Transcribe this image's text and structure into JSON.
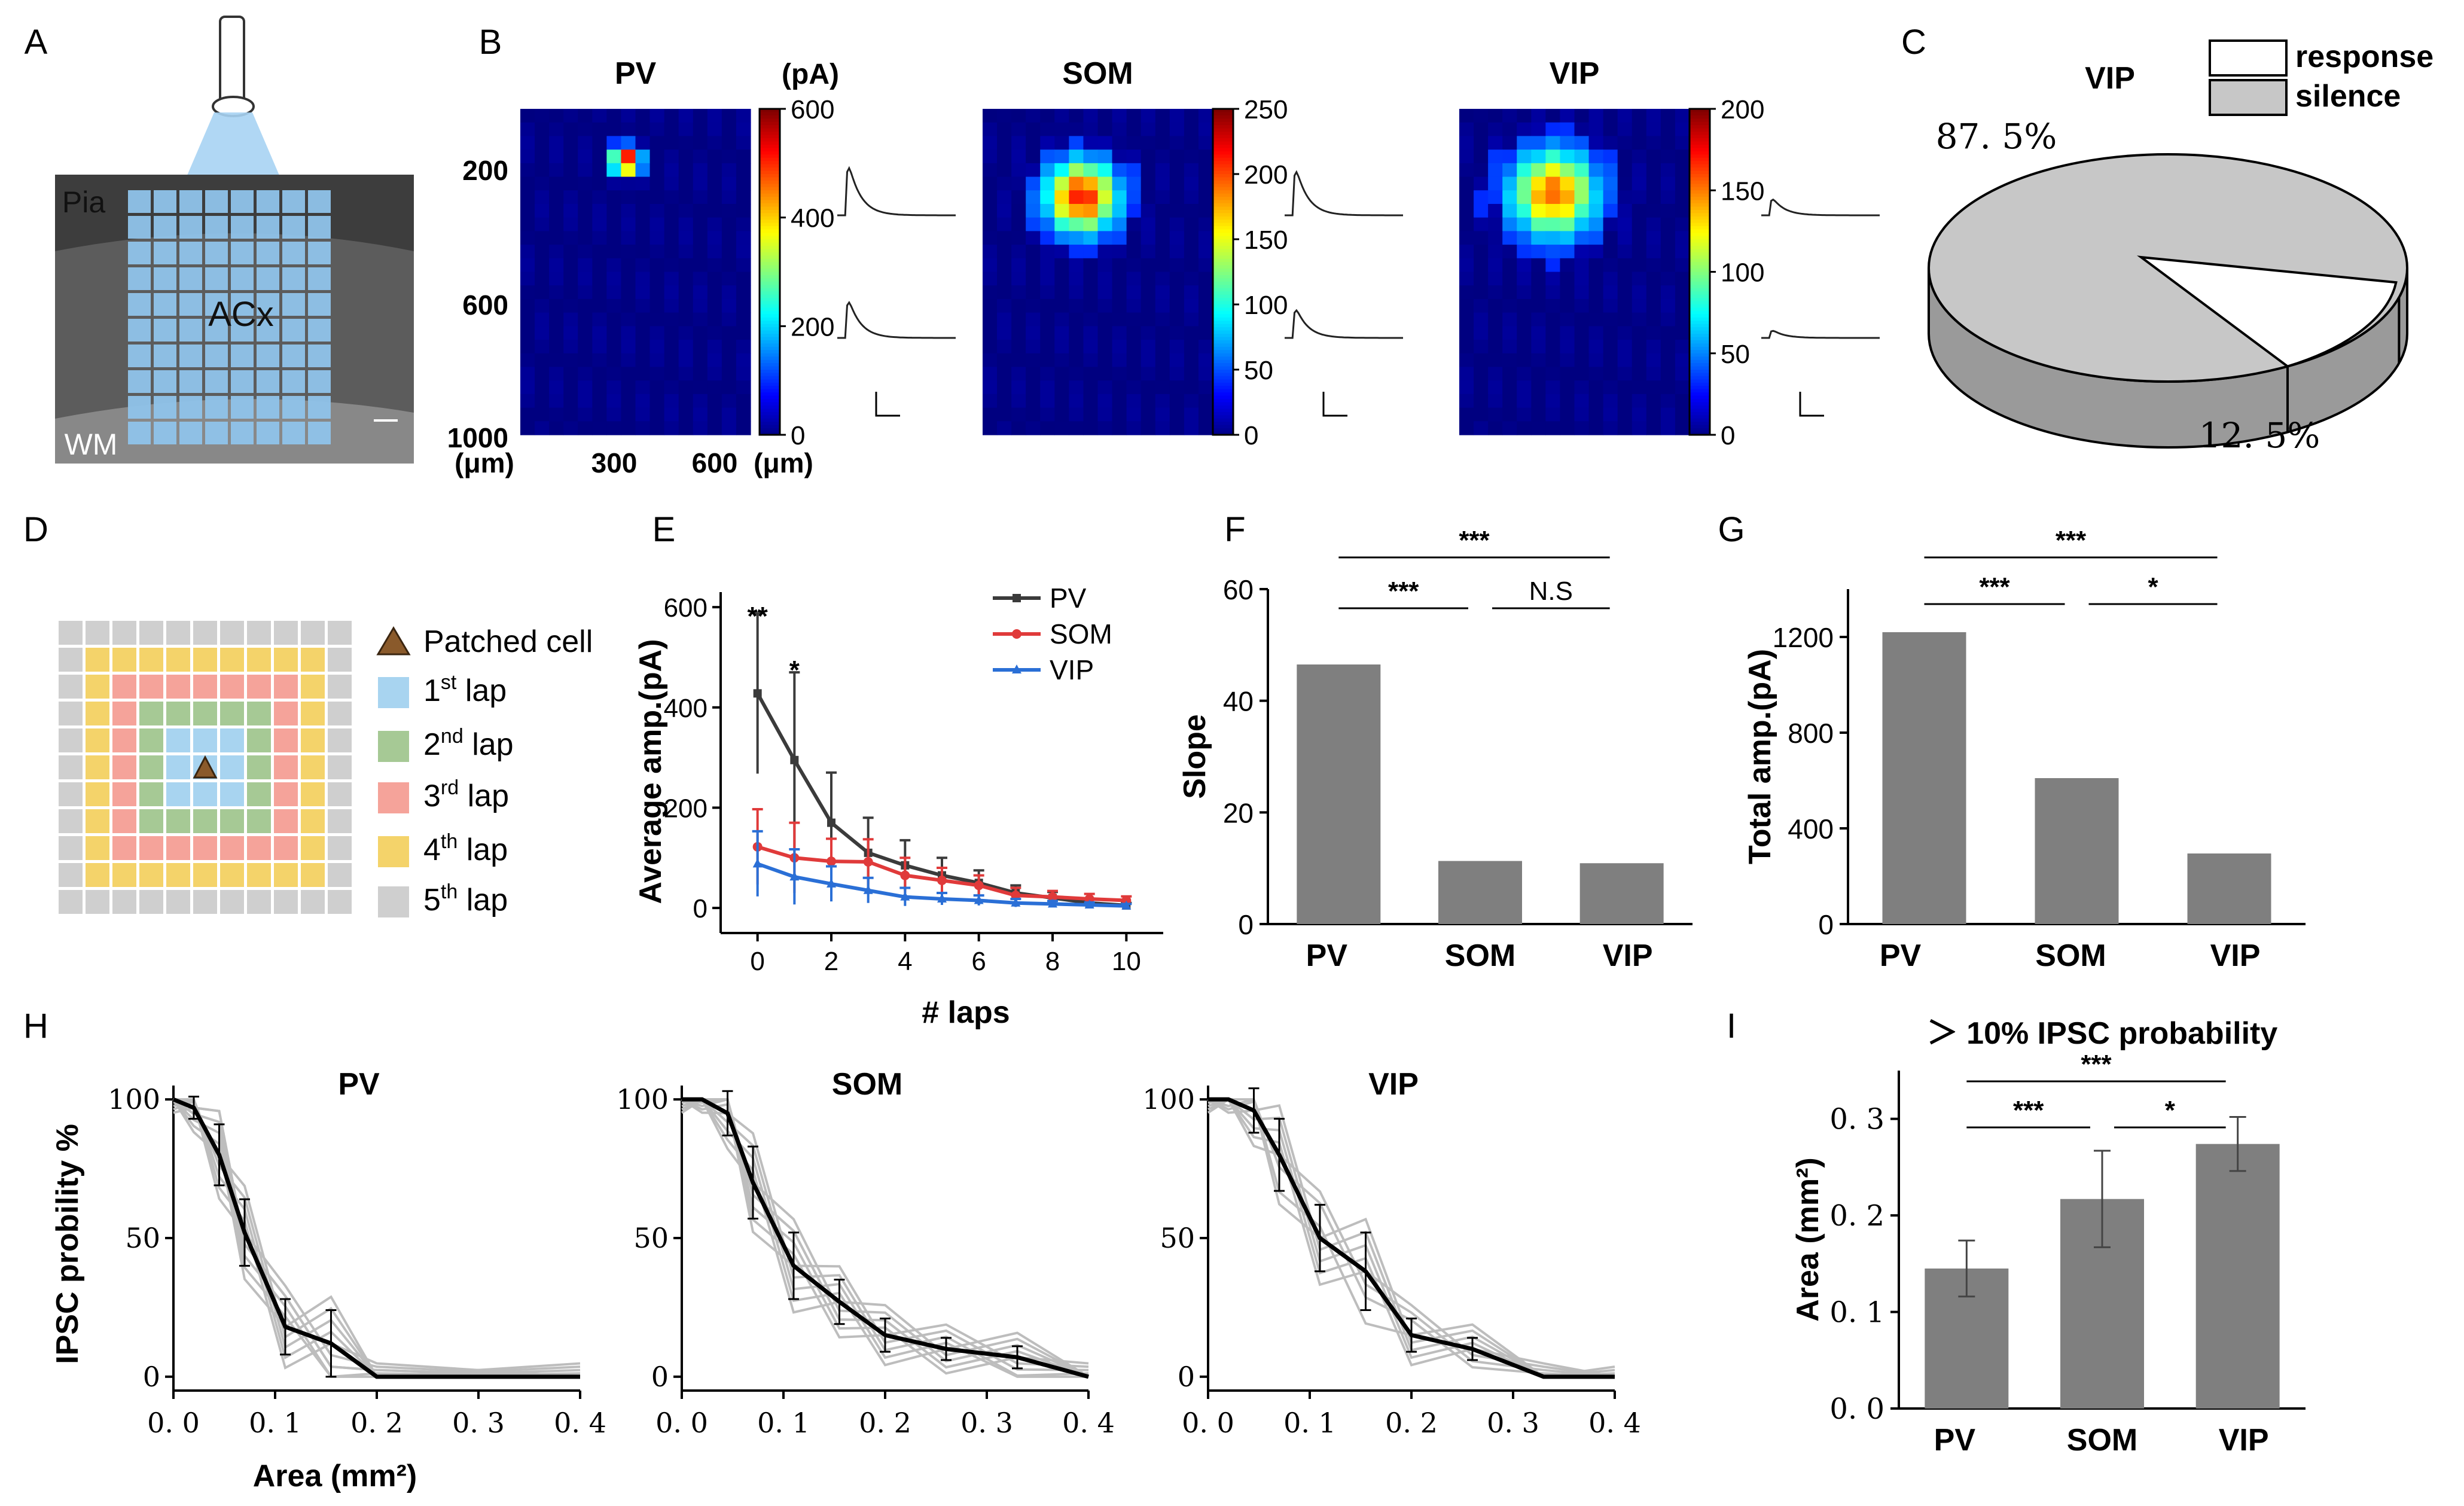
{
  "colors": {
    "bar": "#7f7f7f",
    "pv": "#3b3b3b",
    "som": "#e03a3a",
    "vip": "#2a6fd6",
    "gray_line": "#bdbdbd",
    "grid_blue": "#8fc3ea"
  },
  "panel_letters": [
    "A",
    "B",
    "C",
    "D",
    "E",
    "F",
    "G",
    "H",
    "I"
  ],
  "panelA": {
    "pia": "Pia",
    "acx": "ACx",
    "wm": "WM"
  },
  "panelB": {
    "y_unit": "(μm)",
    "x_unit": "(μm)",
    "cbar_unit": "(pA)",
    "y_ticks": [
      "200",
      "600",
      "1000"
    ],
    "x_ticks": [
      "300",
      "600"
    ],
    "maps": [
      {
        "title": "PV",
        "cbar_ticks": [
          "600",
          "400",
          "200",
          "0"
        ],
        "cx": 0.46,
        "cy": 0.16,
        "spread": 0.6,
        "peak": 1.0
      },
      {
        "title": "SOM",
        "cbar_ticks": [
          "250",
          "200",
          "150",
          "100",
          "50",
          "0"
        ],
        "cx": 0.43,
        "cy": 0.27,
        "spread": 1.6,
        "peak": 0.85
      },
      {
        "title": "VIP",
        "cbar_ticks": [
          "200",
          "150",
          "100",
          "50",
          "0"
        ],
        "cx": 0.41,
        "cy": 0.26,
        "spread": 1.9,
        "peak": 0.75
      }
    ]
  },
  "panelC": {
    "title": "VIP",
    "legend": [
      "response",
      "silence"
    ],
    "silence_label": "87. 5%",
    "response_label": "12. 5%"
  },
  "panelD": {
    "legend": [
      {
        "label": "Patched cell",
        "sup": ""
      },
      {
        "label": "1",
        "sup": "st",
        "suffix": " lap"
      },
      {
        "label": "2",
        "sup": "nd",
        "suffix": " lap"
      },
      {
        "label": "3",
        "sup": "rd",
        "suffix": " lap"
      },
      {
        "label": "4",
        "sup": "th",
        "suffix": " lap"
      },
      {
        "label": "5",
        "sup": "th",
        "suffix": " lap"
      }
    ],
    "lap_colors": [
      "#a8d4f0",
      "#a6c995",
      "#f5a39a",
      "#f4d36a",
      "#cfcfcf"
    ]
  },
  "chart_data": [
    {
      "id": "E",
      "type": "line",
      "xlabel": "# laps",
      "ylabel": "Average amp.(pA)",
      "xlim": [
        -1,
        11
      ],
      "ylim": [
        -50,
        630
      ],
      "x_ticks": [
        0,
        2,
        4,
        6,
        8,
        10
      ],
      "y_ticks": [
        0,
        200,
        400,
        600
      ],
      "x": [
        0,
        1,
        2,
        3,
        4,
        5,
        6,
        7,
        8,
        9,
        10
      ],
      "series": [
        {
          "name": "PV",
          "values": [
            428,
            295,
            170,
            110,
            85,
            65,
            50,
            30,
            20,
            10,
            5
          ],
          "err": [
            160,
            175,
            100,
            70,
            50,
            35,
            25,
            15,
            12,
            8,
            5
          ]
        },
        {
          "name": "SOM",
          "values": [
            122,
            100,
            93,
            92,
            65,
            55,
            45,
            25,
            22,
            18,
            15
          ],
          "err": [
            75,
            70,
            45,
            45,
            35,
            25,
            20,
            15,
            12,
            10,
            8
          ]
        },
        {
          "name": "VIP",
          "values": [
            88,
            62,
            48,
            35,
            22,
            18,
            15,
            10,
            8,
            6,
            4
          ],
          "err": [
            65,
            55,
            35,
            25,
            18,
            12,
            10,
            8,
            6,
            5,
            4
          ]
        }
      ],
      "annotations": [
        {
          "x": 0,
          "text": "**"
        },
        {
          "x": 1,
          "text": "*"
        }
      ]
    },
    {
      "id": "F",
      "type": "bar",
      "ylabel": "Slope",
      "categories": [
        "PV",
        "SOM",
        "VIP"
      ],
      "values": [
        46.5,
        11.3,
        10.9
      ],
      "ylim": [
        0,
        60
      ],
      "y_ticks": [
        0,
        20,
        40,
        60
      ],
      "sig": [
        {
          "from": 0,
          "to": 2,
          "text": "***",
          "level": 2
        },
        {
          "from": 0,
          "to": 1,
          "text": "***",
          "level": 1
        },
        {
          "from": 1,
          "to": 2,
          "text": "N.S",
          "level": 1
        }
      ]
    },
    {
      "id": "G",
      "type": "bar",
      "ylabel": "Total amp.(pA)",
      "categories": [
        "PV",
        "SOM",
        "VIP"
      ],
      "values": [
        1220,
        610,
        295
      ],
      "ylim": [
        0,
        1400
      ],
      "y_ticks": [
        0,
        400,
        800,
        1200
      ],
      "sig": [
        {
          "from": 0,
          "to": 2,
          "text": "***",
          "level": 2
        },
        {
          "from": 0,
          "to": 1,
          "text": "***",
          "level": 1
        },
        {
          "from": 1,
          "to": 2,
          "text": "*",
          "level": 1
        }
      ]
    },
    {
      "id": "H_PV",
      "type": "line",
      "title": "PV",
      "xlabel": "Area (mm²)",
      "ylabel": "IPSC probility %",
      "xlim": [
        0,
        0.4
      ],
      "ylim": [
        -5,
        105
      ],
      "x_ticks": [
        "0. 0",
        "0. 1",
        "0. 2",
        "0. 3",
        "0. 4"
      ],
      "y_ticks": [
        0,
        50,
        100
      ],
      "mean": {
        "x": [
          0,
          0.02,
          0.045,
          0.07,
          0.11,
          0.155,
          0.2,
          0.4
        ],
        "y": [
          100,
          97,
          80,
          52,
          18,
          12,
          0,
          0
        ],
        "err": [
          0,
          4,
          11,
          12,
          10,
          12,
          0,
          0
        ]
      },
      "gray_count": 10
    },
    {
      "id": "H_SOM",
      "type": "line",
      "title": "SOM",
      "xlabel": "",
      "ylabel": "",
      "xlim": [
        0,
        0.4
      ],
      "ylim": [
        -5,
        105
      ],
      "x_ticks": [
        "0. 0",
        "0. 1",
        "0. 2",
        "0. 3",
        "0. 4"
      ],
      "y_ticks": [
        0,
        50,
        100
      ],
      "mean": {
        "x": [
          0,
          0.02,
          0.045,
          0.07,
          0.11,
          0.155,
          0.2,
          0.26,
          0.33,
          0.4
        ],
        "y": [
          100,
          100,
          95,
          70,
          40,
          27,
          15,
          10,
          7,
          0
        ],
        "err": [
          0,
          0,
          8,
          13,
          12,
          8,
          6,
          4,
          4,
          0
        ]
      },
      "gray_count": 10
    },
    {
      "id": "H_VIP",
      "type": "line",
      "title": "VIP",
      "xlabel": "",
      "ylabel": "",
      "xlim": [
        0,
        0.4
      ],
      "ylim": [
        -5,
        105
      ],
      "x_ticks": [
        "0. 0",
        "0. 1",
        "0. 2",
        "0. 3",
        "0. 4"
      ],
      "y_ticks": [
        0,
        50,
        100
      ],
      "mean": {
        "x": [
          0,
          0.02,
          0.045,
          0.07,
          0.11,
          0.155,
          0.2,
          0.26,
          0.33,
          0.4
        ],
        "y": [
          100,
          100,
          96,
          80,
          50,
          38,
          15,
          10,
          0,
          0
        ],
        "err": [
          0,
          0,
          8,
          13,
          12,
          14,
          6,
          4,
          0,
          0
        ]
      },
      "gray_count": 8
    },
    {
      "id": "I",
      "type": "bar",
      "title": "＞ 10% IPSC probability",
      "ylabel": "Area (mm²)",
      "categories": [
        "PV",
        "SOM",
        "VIP"
      ],
      "values": [
        0.145,
        0.217,
        0.274
      ],
      "err": [
        0.029,
        0.05,
        0.028
      ],
      "ylim": [
        0,
        0.35
      ],
      "y_ticks": [
        "0. 0",
        "0. 1",
        "0. 2",
        "0. 3"
      ],
      "sig": [
        {
          "from": 0,
          "to": 2,
          "text": "***",
          "level": 2
        },
        {
          "from": 0,
          "to": 1,
          "text": "***",
          "level": 1
        },
        {
          "from": 1,
          "to": 2,
          "text": "*",
          "level": 1
        }
      ]
    }
  ]
}
